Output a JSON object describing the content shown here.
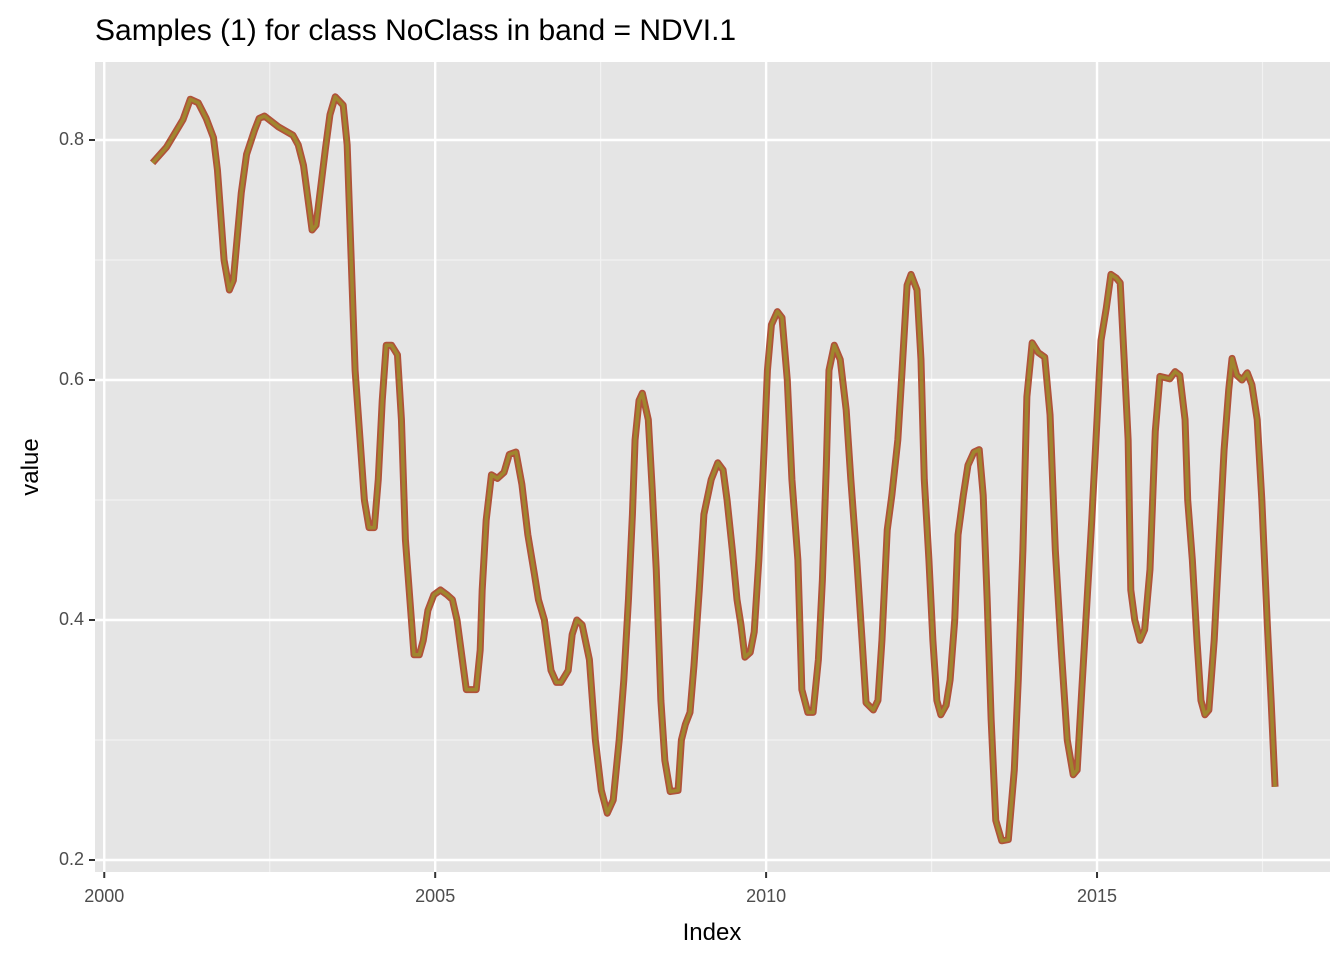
{
  "chart_data": {
    "type": "line",
    "title": "Samples (1) for class NoClass in band = NDVI.1",
    "x_label": "Index",
    "y_label": "value",
    "color": "#a0862e",
    "outline_color": "#b0523a",
    "grid": true,
    "minor_grid": true,
    "xlim": [
      1999.86,
      2018.52
    ],
    "ylim": [
      0.19,
      0.865
    ],
    "xticks": [
      2000,
      2005,
      2010,
      2015
    ],
    "yticks": [
      0.2,
      0.4,
      0.6,
      0.8
    ],
    "x": [
      2000.73,
      2000.94,
      2001.19,
      2001.3,
      2001.42,
      2001.54,
      2001.65,
      2001.71,
      2001.81,
      2001.89,
      2001.95,
      2002.07,
      2002.15,
      2002.27,
      2002.34,
      2002.42,
      2002.63,
      2002.85,
      2002.93,
      2003.01,
      2003.14,
      2003.2,
      2003.34,
      2003.41,
      2003.49,
      2003.61,
      2003.67,
      2003.79,
      2003.93,
      2004.0,
      2004.08,
      2004.14,
      2004.2,
      2004.26,
      2004.34,
      2004.43,
      2004.49,
      2004.55,
      2004.68,
      2004.76,
      2004.82,
      2004.89,
      2004.98,
      2005.08,
      2005.18,
      2005.26,
      2005.33,
      2005.41,
      2005.47,
      2005.62,
      2005.68,
      2005.71,
      2005.77,
      2005.85,
      2005.94,
      2006.04,
      2006.12,
      2006.22,
      2006.31,
      2006.4,
      2006.5,
      2006.56,
      2006.65,
      2006.69,
      2006.75,
      2006.83,
      2006.9,
      2007.01,
      2007.07,
      2007.14,
      2007.22,
      2007.33,
      2007.42,
      2007.51,
      2007.6,
      2007.69,
      2007.78,
      2007.85,
      2007.92,
      2007.98,
      2008.02,
      2008.08,
      2008.13,
      2008.22,
      2008.28,
      2008.34,
      2008.41,
      2008.47,
      2008.55,
      2008.67,
      2008.72,
      2008.78,
      2008.85,
      2008.91,
      2008.99,
      2009.06,
      2009.17,
      2009.27,
      2009.35,
      2009.41,
      2009.49,
      2009.56,
      2009.62,
      2009.68,
      2009.76,
      2009.82,
      2009.89,
      2009.95,
      2010.02,
      2010.08,
      2010.17,
      2010.24,
      2010.32,
      2010.39,
      2010.48,
      2010.54,
      2010.63,
      2010.71,
      2010.79,
      2010.85,
      2010.91,
      2010.95,
      2011.03,
      2011.12,
      2011.21,
      2011.28,
      2011.37,
      2011.45,
      2011.51,
      2011.62,
      2011.69,
      2011.75,
      2011.83,
      2011.9,
      2011.99,
      2012.05,
      2012.13,
      2012.19,
      2012.28,
      2012.34,
      2012.39,
      2012.46,
      2012.52,
      2012.58,
      2012.64,
      2012.72,
      2012.78,
      2012.85,
      2012.9,
      2012.98,
      2013.05,
      2013.14,
      2013.22,
      2013.28,
      2013.34,
      2013.4,
      2013.47,
      2013.56,
      2013.66,
      2013.75,
      2013.81,
      2013.88,
      2013.94,
      2014.02,
      2014.11,
      2014.21,
      2014.29,
      2014.37,
      2014.46,
      2014.55,
      2014.64,
      2014.7,
      2014.77,
      2014.85,
      2014.92,
      2015.0,
      2015.06,
      2015.14,
      2015.21,
      2015.29,
      2015.35,
      2015.41,
      2015.47,
      2015.51,
      2015.57,
      2015.65,
      2015.72,
      2015.8,
      2015.88,
      2015.95,
      2016.1,
      2016.18,
      2016.25,
      2016.33,
      2016.37,
      2016.44,
      2016.51,
      2016.57,
      2016.63,
      2016.69,
      2016.77,
      2016.84,
      2016.92,
      2016.99,
      2017.04,
      2017.11,
      2017.19,
      2017.27,
      2017.34,
      2017.42,
      2017.49,
      2017.57,
      2017.63,
      2017.69
    ],
    "values": [
      0.781,
      0.794,
      0.817,
      0.834,
      0.831,
      0.818,
      0.802,
      0.775,
      0.7,
      0.675,
      0.683,
      0.756,
      0.788,
      0.808,
      0.818,
      0.82,
      0.811,
      0.804,
      0.796,
      0.779,
      0.725,
      0.729,
      0.792,
      0.821,
      0.836,
      0.829,
      0.796,
      0.608,
      0.5,
      0.477,
      0.477,
      0.517,
      0.583,
      0.629,
      0.629,
      0.621,
      0.567,
      0.467,
      0.371,
      0.371,
      0.383,
      0.408,
      0.421,
      0.425,
      0.421,
      0.417,
      0.4,
      0.367,
      0.342,
      0.342,
      0.375,
      0.425,
      0.483,
      0.521,
      0.518,
      0.523,
      0.538,
      0.54,
      0.513,
      0.471,
      0.438,
      0.417,
      0.4,
      0.383,
      0.358,
      0.348,
      0.348,
      0.358,
      0.388,
      0.4,
      0.396,
      0.367,
      0.3,
      0.258,
      0.239,
      0.25,
      0.3,
      0.35,
      0.417,
      0.488,
      0.55,
      0.583,
      0.589,
      0.567,
      0.508,
      0.442,
      0.333,
      0.283,
      0.257,
      0.258,
      0.3,
      0.313,
      0.323,
      0.362,
      0.425,
      0.488,
      0.517,
      0.531,
      0.525,
      0.5,
      0.458,
      0.417,
      0.396,
      0.369,
      0.373,
      0.39,
      0.45,
      0.517,
      0.608,
      0.646,
      0.657,
      0.652,
      0.6,
      0.517,
      0.45,
      0.342,
      0.323,
      0.323,
      0.367,
      0.433,
      0.529,
      0.608,
      0.629,
      0.617,
      0.575,
      0.517,
      0.45,
      0.383,
      0.331,
      0.325,
      0.333,
      0.383,
      0.475,
      0.504,
      0.55,
      0.604,
      0.679,
      0.688,
      0.675,
      0.617,
      0.517,
      0.45,
      0.383,
      0.333,
      0.321,
      0.329,
      0.35,
      0.4,
      0.471,
      0.504,
      0.529,
      0.54,
      0.542,
      0.504,
      0.417,
      0.317,
      0.233,
      0.216,
      0.217,
      0.275,
      0.35,
      0.458,
      0.586,
      0.631,
      0.623,
      0.619,
      0.571,
      0.458,
      0.375,
      0.3,
      0.271,
      0.275,
      0.342,
      0.417,
      0.483,
      0.567,
      0.633,
      0.66,
      0.688,
      0.685,
      0.681,
      0.617,
      0.55,
      0.425,
      0.4,
      0.383,
      0.392,
      0.442,
      0.557,
      0.603,
      0.601,
      0.607,
      0.604,
      0.567,
      0.5,
      0.45,
      0.383,
      0.333,
      0.321,
      0.325,
      0.383,
      0.458,
      0.542,
      0.592,
      0.618,
      0.604,
      0.6,
      0.606,
      0.596,
      0.567,
      0.5,
      0.4,
      0.333,
      0.261
    ]
  }
}
